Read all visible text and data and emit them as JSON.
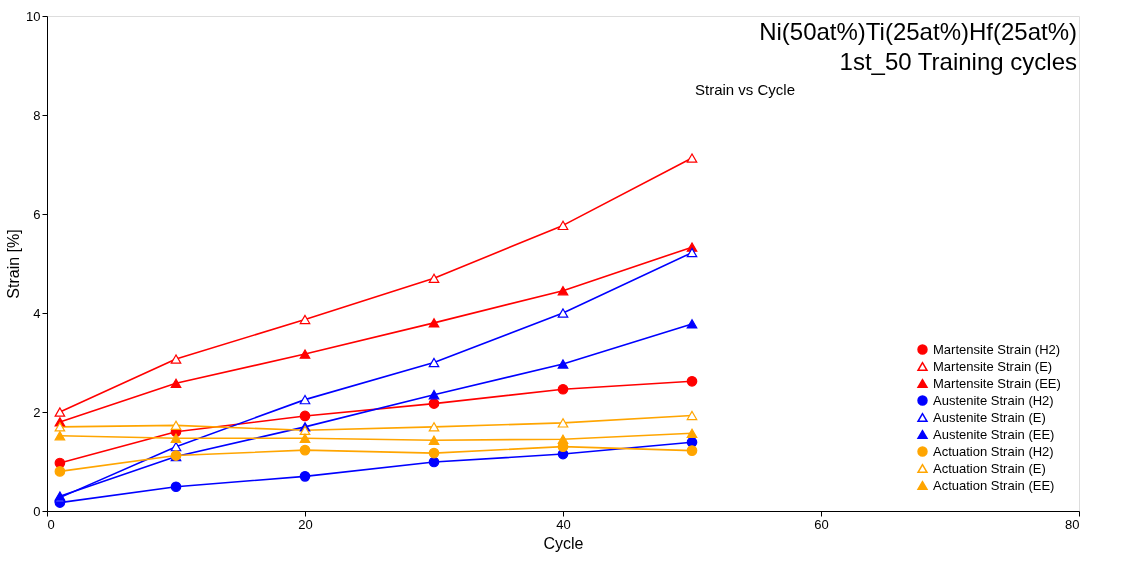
{
  "chart_data": {
    "type": "line",
    "title": "Ni(50at%)Ti(25at%)Hf(25at%)\n1st_50 Training cycles",
    "subtitle": "Strain vs Cycle",
    "xlabel": "Cycle",
    "ylabel": "Strain [%]",
    "x": [
      1,
      10,
      20,
      30,
      40,
      50
    ],
    "series": [
      {
        "name": "Martensite Strain (H2)",
        "color": "#ff0000",
        "marker": "circle",
        "values": [
          0.97,
          1.6,
          1.92,
          2.17,
          2.46,
          2.62
        ]
      },
      {
        "name": "Martensite Strain (E)",
        "color": "#ff0000",
        "marker": "triangle-open",
        "values": [
          2.0,
          3.07,
          3.87,
          4.7,
          5.77,
          7.13
        ]
      },
      {
        "name": "Martensite Strain (EE)",
        "color": "#ff0000",
        "marker": "triangle",
        "values": [
          1.8,
          2.58,
          3.17,
          3.8,
          4.45,
          5.33
        ]
      },
      {
        "name": "Austenite Strain (H2)",
        "color": "#0000ff",
        "marker": "circle",
        "values": [
          0.17,
          0.49,
          0.7,
          0.99,
          1.15,
          1.39
        ]
      },
      {
        "name": "Austenite Strain (E)",
        "color": "#0000ff",
        "marker": "triangle-open",
        "values": [
          0.27,
          1.3,
          2.25,
          3.0,
          4.0,
          5.22
        ]
      },
      {
        "name": "Austenite Strain (EE)",
        "color": "#0000ff",
        "marker": "triangle",
        "values": [
          0.3,
          1.1,
          1.7,
          2.35,
          2.97,
          3.78
        ]
      },
      {
        "name": "Actuation Strain (H2)",
        "color": "#ffa500",
        "marker": "circle",
        "values": [
          0.8,
          1.12,
          1.23,
          1.17,
          1.3,
          1.22
        ]
      },
      {
        "name": "Actuation Strain (E)",
        "color": "#ffa500",
        "marker": "triangle-open",
        "values": [
          1.7,
          1.73,
          1.63,
          1.7,
          1.78,
          1.93
        ]
      },
      {
        "name": "Actuation Strain (EE)",
        "color": "#ffa500",
        "marker": "triangle",
        "values": [
          1.52,
          1.47,
          1.47,
          1.43,
          1.45,
          1.57
        ]
      }
    ],
    "xlim": [
      0,
      80
    ],
    "xticks": [
      0,
      20,
      40,
      60,
      80
    ],
    "ylim": [
      0,
      10
    ],
    "yticks": [
      0,
      2,
      4,
      6,
      8,
      10
    ],
    "grid": false,
    "legend": "bottom right",
    "line_style": "solid"
  }
}
